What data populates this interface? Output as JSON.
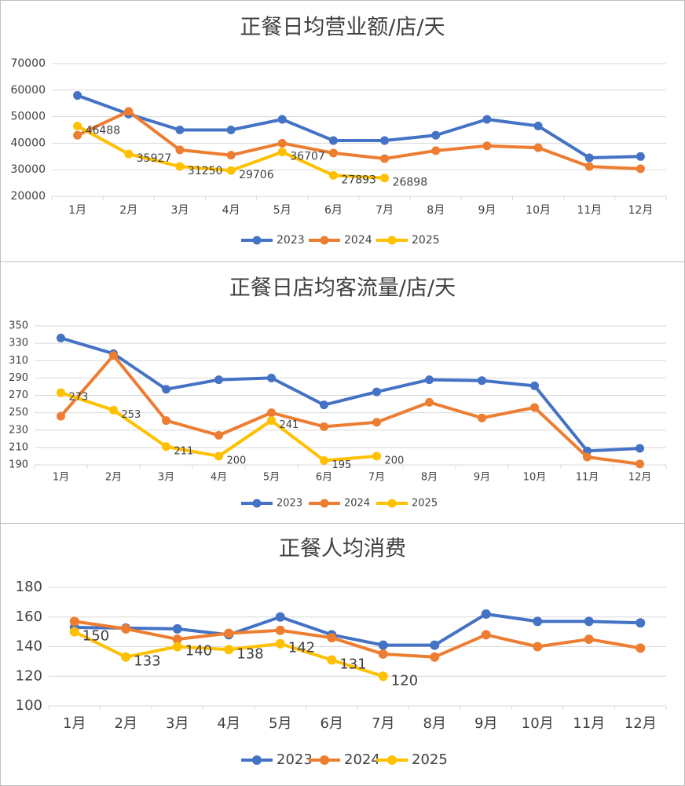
{
  "chart_data": [
    {
      "type": "line",
      "title": "正餐日均营业额/店/天",
      "categories": [
        "1月",
        "2月",
        "3月",
        "4月",
        "5月",
        "6月",
        "7月",
        "8月",
        "9月",
        "10月",
        "11月",
        "12月"
      ],
      "series": [
        {
          "name": "2023",
          "color": "#4472c4",
          "values": [
            58000,
            51000,
            45000,
            45000,
            49000,
            41000,
            41000,
            43000,
            49000,
            46500,
            34500,
            35000
          ]
        },
        {
          "name": "2024",
          "color": "#ed7d31",
          "values": [
            43000,
            52000,
            37500,
            35500,
            40000,
            36300,
            34200,
            37200,
            39000,
            38300,
            31200,
            30400
          ]
        },
        {
          "name": "2025",
          "color": "#ffc000",
          "data_labels": true,
          "values": [
            46488,
            35927,
            31250,
            29706,
            36707,
            27893,
            26898,
            null,
            null,
            null,
            null,
            null
          ]
        }
      ],
      "ylim": [
        20000,
        70000
      ],
      "yticks": [
        20000,
        30000,
        40000,
        50000,
        60000,
        70000
      ],
      "grid": true,
      "legend": "bottom"
    },
    {
      "type": "line",
      "title": "正餐日店均客流量/店/天",
      "categories": [
        "1月",
        "2月",
        "3月",
        "4月",
        "5月",
        "6月",
        "7月",
        "8月",
        "9月",
        "10月",
        "11月",
        "12月"
      ],
      "series": [
        {
          "name": "2023",
          "color": "#4472c4",
          "values": [
            336,
            318,
            277,
            288,
            290,
            259,
            274,
            288,
            287,
            281,
            206,
            209
          ]
        },
        {
          "name": "2024",
          "color": "#ed7d31",
          "values": [
            246,
            316,
            241,
            224,
            250,
            234,
            239,
            262,
            244,
            256,
            199,
            191
          ]
        },
        {
          "name": "2025",
          "color": "#ffc000",
          "data_labels": true,
          "values": [
            273,
            253,
            211,
            200,
            241,
            195,
            200,
            null,
            null,
            null,
            null,
            null
          ]
        }
      ],
      "ylim": [
        190,
        350
      ],
      "yticks": [
        190,
        210,
        230,
        250,
        270,
        290,
        310,
        330,
        350
      ],
      "grid": true,
      "legend": "bottom"
    },
    {
      "type": "line",
      "title": "正餐人均消费",
      "categories": [
        "1月",
        "2月",
        "3月",
        "4月",
        "5月",
        "6月",
        "7月",
        "8月",
        "9月",
        "10月",
        "11月",
        "12月"
      ],
      "series": [
        {
          "name": "2023",
          "color": "#4472c4",
          "values": [
            153,
            152.5,
            152,
            148,
            160,
            148,
            141,
            141,
            162,
            157,
            157,
            156
          ]
        },
        {
          "name": "2024",
          "color": "#ed7d31",
          "values": [
            157,
            152,
            145,
            149,
            151,
            146,
            135,
            133,
            148,
            140,
            145,
            139
          ]
        },
        {
          "name": "2025",
          "color": "#ffc000",
          "data_labels": true,
          "values": [
            150,
            133,
            140,
            138,
            142,
            131,
            120,
            null,
            null,
            null,
            null,
            null
          ]
        }
      ],
      "ylim": [
        100,
        180
      ],
      "yticks": [
        100,
        120,
        140,
        160,
        180
      ],
      "grid": true,
      "legend": "bottom"
    }
  ]
}
